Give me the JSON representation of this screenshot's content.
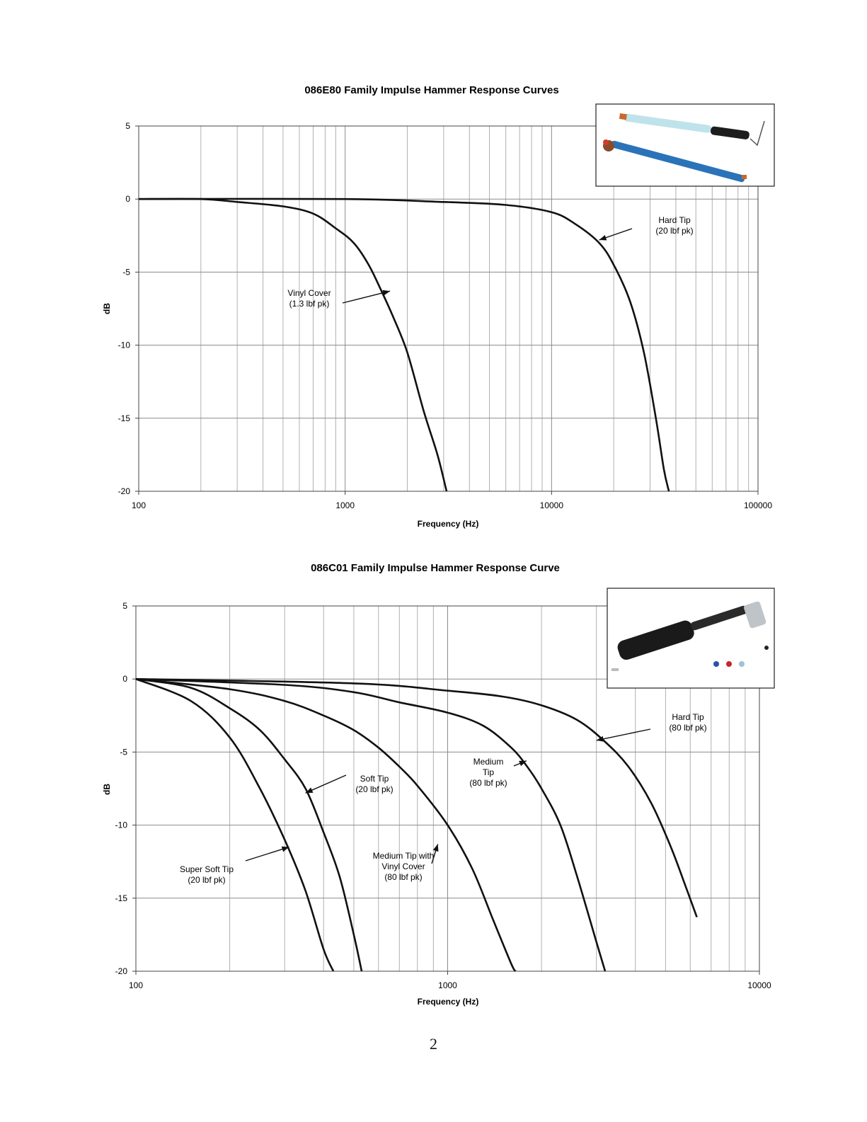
{
  "page": {
    "page_number": "2"
  },
  "chart_data": [
    {
      "type": "line",
      "title": "086E80 Family Impulse Hammer Response Curves",
      "xlabel": "Frequency (Hz)",
      "ylabel": "dB",
      "x_scale": "log",
      "xlim": [
        100,
        100000
      ],
      "ylim": [
        -20,
        5
      ],
      "x_ticks": [
        100,
        1000,
        10000,
        100000
      ],
      "x_tick_labels": [
        "100",
        "1000",
        "10000",
        "100000"
      ],
      "y_ticks": [
        5,
        0,
        -5,
        -10,
        -15,
        -20
      ],
      "y_tick_labels": [
        "5",
        "0",
        "-5",
        "-10",
        "-15",
        "-20"
      ],
      "grid": true,
      "legend": "none",
      "inset_photo": "impulse hammer photo (086E80 family)",
      "series": [
        {
          "id": "vinyl",
          "x": [
            100,
            200,
            300,
            500,
            700,
            900,
            1100,
            1300,
            1500,
            1700,
            2000,
            2400,
            2800,
            3100
          ],
          "y": [
            0,
            0,
            -0.2,
            -0.5,
            -1.0,
            -2.0,
            -3.0,
            -4.5,
            -6.3,
            -8.0,
            -10.5,
            -14.5,
            -17.5,
            -20
          ]
        },
        {
          "id": "hard",
          "x": [
            100,
            1000,
            3000,
            6000,
            10000,
            13000,
            17000,
            20000,
            24000,
            28000,
            32000,
            35000,
            37000
          ],
          "y": [
            0,
            0,
            -0.2,
            -0.4,
            -0.9,
            -1.7,
            -3.0,
            -4.5,
            -7.0,
            -10.5,
            -15.0,
            -18.5,
            -20
          ]
        }
      ],
      "annotations": [
        {
          "lines": [
            "Vinyl Cover",
            "(1.3 lbf pk)"
          ],
          "points_to": [
            1650,
            -6.3
          ]
        },
        {
          "lines": [
            "Hard Tip",
            "(20 lbf pk)"
          ],
          "points_to": [
            17000,
            -2.8
          ]
        }
      ]
    },
    {
      "type": "line",
      "title": "086C01 Family Impulse Hammer Response Curve",
      "xlabel": "Frequency (Hz)",
      "ylabel": "dB",
      "x_scale": "log",
      "xlim": [
        100,
        10000
      ],
      "ylim": [
        -20,
        5
      ],
      "x_ticks": [
        100,
        1000,
        10000
      ],
      "x_tick_labels": [
        "100",
        "1000",
        "10000"
      ],
      "y_ticks": [
        5,
        0,
        -5,
        -10,
        -15,
        -20
      ],
      "y_tick_labels": [
        "5",
        "0",
        "-5",
        "-10",
        "-15",
        "-20"
      ],
      "grid": true,
      "legend": "none",
      "inset_photo": "impulse hammer photo (086C01 family) with tips",
      "series": [
        {
          "id": "super_soft",
          "x": [
            100,
            150,
            200,
            250,
            300,
            350,
            400,
            430
          ],
          "y": [
            0,
            -1.5,
            -4.0,
            -7.5,
            -11.0,
            -14.5,
            -18.5,
            -20
          ]
        },
        {
          "id": "soft",
          "x": [
            100,
            150,
            200,
            250,
            300,
            350,
            400,
            450,
            500,
            530
          ],
          "y": [
            0,
            -0.6,
            -2.0,
            -3.5,
            -5.5,
            -7.5,
            -10.5,
            -13.5,
            -17.5,
            -20
          ]
        },
        {
          "id": "medium_vinyl",
          "x": [
            100,
            200,
            300,
            400,
            500,
            600,
            700,
            800,
            1000,
            1200,
            1400,
            1600,
            1650
          ],
          "y": [
            0,
            -0.7,
            -1.5,
            -2.5,
            -3.5,
            -4.7,
            -6.0,
            -7.3,
            -10.0,
            -13.0,
            -16.5,
            -19.5,
            -20
          ]
        },
        {
          "id": "medium",
          "x": [
            100,
            300,
            500,
            700,
            1000,
            1300,
            1600,
            1800,
            2000,
            2300,
            2600,
            3000,
            3200
          ],
          "y": [
            0,
            -0.4,
            -0.9,
            -1.6,
            -2.3,
            -3.2,
            -4.7,
            -6.0,
            -7.5,
            -10.0,
            -13.5,
            -18.0,
            -20
          ]
        },
        {
          "id": "hard",
          "x": [
            100,
            500,
            1000,
            1500,
            2000,
            2600,
            3200,
            3800,
            4500,
            5200,
            5800,
            6300
          ],
          "y": [
            0,
            -0.3,
            -0.8,
            -1.2,
            -1.8,
            -2.8,
            -4.3,
            -6.0,
            -8.5,
            -11.5,
            -14.2,
            -16.3
          ]
        }
      ],
      "annotations": [
        {
          "lines": [
            "Super Soft Tip",
            "(20 lbf pk)"
          ],
          "points_to": [
            310,
            -11.5
          ]
        },
        {
          "lines": [
            "Soft Tip",
            "(20 lbf pk)"
          ],
          "points_to": [
            350,
            -7.8
          ]
        },
        {
          "lines": [
            "Medium Tip with",
            "Vinyl Cover",
            "(80 lbf pk)"
          ],
          "points_to": [
            930,
            -11.3
          ]
        },
        {
          "lines": [
            "Medium",
            "Tip",
            "(80 lbf pk)"
          ],
          "points_to": [
            1790,
            -5.6
          ]
        },
        {
          "lines": [
            "Hard Tip",
            "(80 lbf pk)"
          ],
          "points_to": [
            3000,
            -4.2
          ]
        }
      ]
    }
  ]
}
